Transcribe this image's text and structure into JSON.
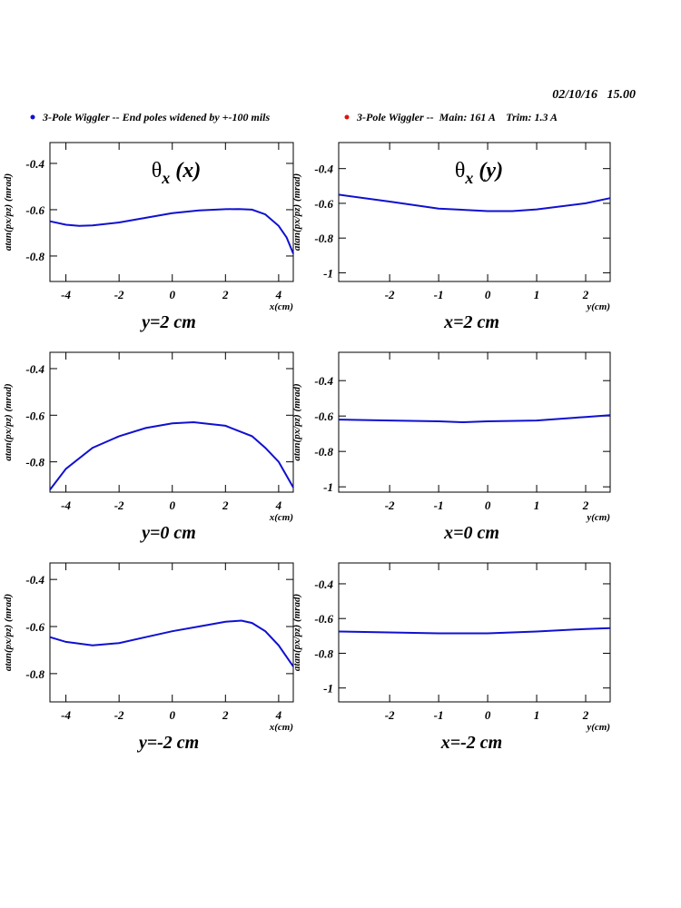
{
  "header": {
    "date": "02/10/16   15.00"
  },
  "legend": [
    {
      "name": "3-Pole Wiggler -- End poles widened by +-100 mils",
      "color": "#1010d0"
    },
    {
      "name": "3-Pole Wiggler --  Main: 161 A    Trim: 1.3 A",
      "color": "#e01010"
    }
  ],
  "chart_data": [
    {
      "type": "line",
      "title": [
        "θ",
        "x",
        "(x)"
      ],
      "xlabel": "x(cm)",
      "ylabel": "atan(px/pz) (mrad)",
      "caption": "y=2 cm",
      "x": [
        -4.6,
        -4,
        -3.5,
        -3,
        -2,
        -1,
        0,
        1,
        2,
        2.5,
        3,
        3.5,
        4,
        4.3,
        4.55
      ],
      "series": [
        {
          "color": "#1010d0",
          "values": [
            -0.65,
            -0.665,
            -0.67,
            -0.668,
            -0.655,
            -0.635,
            -0.615,
            -0.603,
            -0.598,
            -0.597,
            -0.6,
            -0.62,
            -0.67,
            -0.72,
            -0.79
          ]
        }
      ],
      "xlim": [
        -4.6,
        4.55
      ],
      "xticks": [
        -4,
        -2,
        0,
        2,
        4
      ],
      "ylim": [
        -0.91,
        -0.31
      ],
      "yticks": [
        -0.4,
        -0.6,
        -0.8
      ]
    },
    {
      "type": "line",
      "title": [
        "θ",
        "x",
        "(y)"
      ],
      "xlabel": "y(cm)",
      "ylabel": "atan(px/pz) (mrad)",
      "caption": "x=2 cm",
      "x": [
        -3.04,
        -2,
        -1,
        0,
        0.5,
        1,
        2,
        2.5
      ],
      "series": [
        {
          "color": "#1010d0",
          "values": [
            -0.55,
            -0.59,
            -0.63,
            -0.645,
            -0.645,
            -0.635,
            -0.6,
            -0.57
          ]
        }
      ],
      "xlim": [
        -3.04,
        2.5
      ],
      "xticks": [
        -2,
        -1,
        0,
        1,
        2
      ],
      "ylim": [
        -1.05,
        -0.25
      ],
      "yticks": [
        -0.4,
        -0.6,
        -0.8,
        -1
      ]
    },
    {
      "type": "line",
      "xlabel": "x(cm)",
      "ylabel": "atan(px/pz) (mrad)",
      "caption": "y=0 cm",
      "x": [
        -4.6,
        -4,
        -3,
        -2,
        -1,
        0,
        0.8,
        2,
        3,
        3.5,
        4,
        4.55
      ],
      "series": [
        {
          "color": "#1010d0",
          "values": [
            -0.92,
            -0.83,
            -0.74,
            -0.69,
            -0.655,
            -0.635,
            -0.63,
            -0.645,
            -0.69,
            -0.74,
            -0.8,
            -0.91
          ]
        }
      ],
      "xlim": [
        -4.6,
        4.55
      ],
      "xticks": [
        -4,
        -2,
        0,
        2,
        4
      ],
      "ylim": [
        -0.93,
        -0.33
      ],
      "yticks": [
        -0.4,
        -0.6,
        -0.8
      ]
    },
    {
      "type": "line",
      "xlabel": "y(cm)",
      "ylabel": "atan(px/pz) (mrad)",
      "caption": "x=0 cm",
      "x": [
        -3.04,
        -2,
        -1,
        -0.5,
        0,
        1,
        2,
        2.5
      ],
      "series": [
        {
          "color": "#1010d0",
          "values": [
            -0.62,
            -0.625,
            -0.63,
            -0.635,
            -0.63,
            -0.625,
            -0.605,
            -0.595
          ]
        }
      ],
      "xlim": [
        -3.04,
        2.5
      ],
      "xticks": [
        -2,
        -1,
        0,
        1,
        2
      ],
      "ylim": [
        -1.03,
        -0.24
      ],
      "yticks": [
        -0.4,
        -0.6,
        -0.8,
        -1
      ]
    },
    {
      "type": "line",
      "xlabel": "x(cm)",
      "ylabel": "atan(px/pz) (mrad)",
      "caption": "y=-2 cm",
      "x": [
        -4.6,
        -4,
        -3,
        -2,
        -1,
        0,
        1,
        2,
        2.6,
        3,
        3.5,
        4,
        4.55
      ],
      "series": [
        {
          "color": "#1010d0",
          "values": [
            -0.645,
            -0.665,
            -0.68,
            -0.67,
            -0.645,
            -0.62,
            -0.6,
            -0.58,
            -0.575,
            -0.585,
            -0.62,
            -0.68,
            -0.77
          ]
        }
      ],
      "xlim": [
        -4.6,
        4.55
      ],
      "xticks": [
        -4,
        -2,
        0,
        2,
        4
      ],
      "ylim": [
        -0.92,
        -0.33
      ],
      "yticks": [
        -0.4,
        -0.6,
        -0.8
      ]
    },
    {
      "type": "line",
      "xlabel": "y(cm)",
      "ylabel": "atan(px/pz) (mrad)",
      "caption": "x=-2 cm",
      "x": [
        -3.04,
        -1,
        0,
        1,
        2,
        2.5
      ],
      "series": [
        {
          "color": "#1010d0",
          "values": [
            -0.675,
            -0.685,
            -0.685,
            -0.675,
            -0.66,
            -0.655
          ]
        }
      ],
      "xlim": [
        -3.04,
        2.5
      ],
      "xticks": [
        -2,
        -1,
        0,
        1,
        2
      ],
      "ylim": [
        -1.08,
        -0.28
      ],
      "yticks": [
        -0.4,
        -0.6,
        -0.8,
        -1
      ]
    }
  ]
}
